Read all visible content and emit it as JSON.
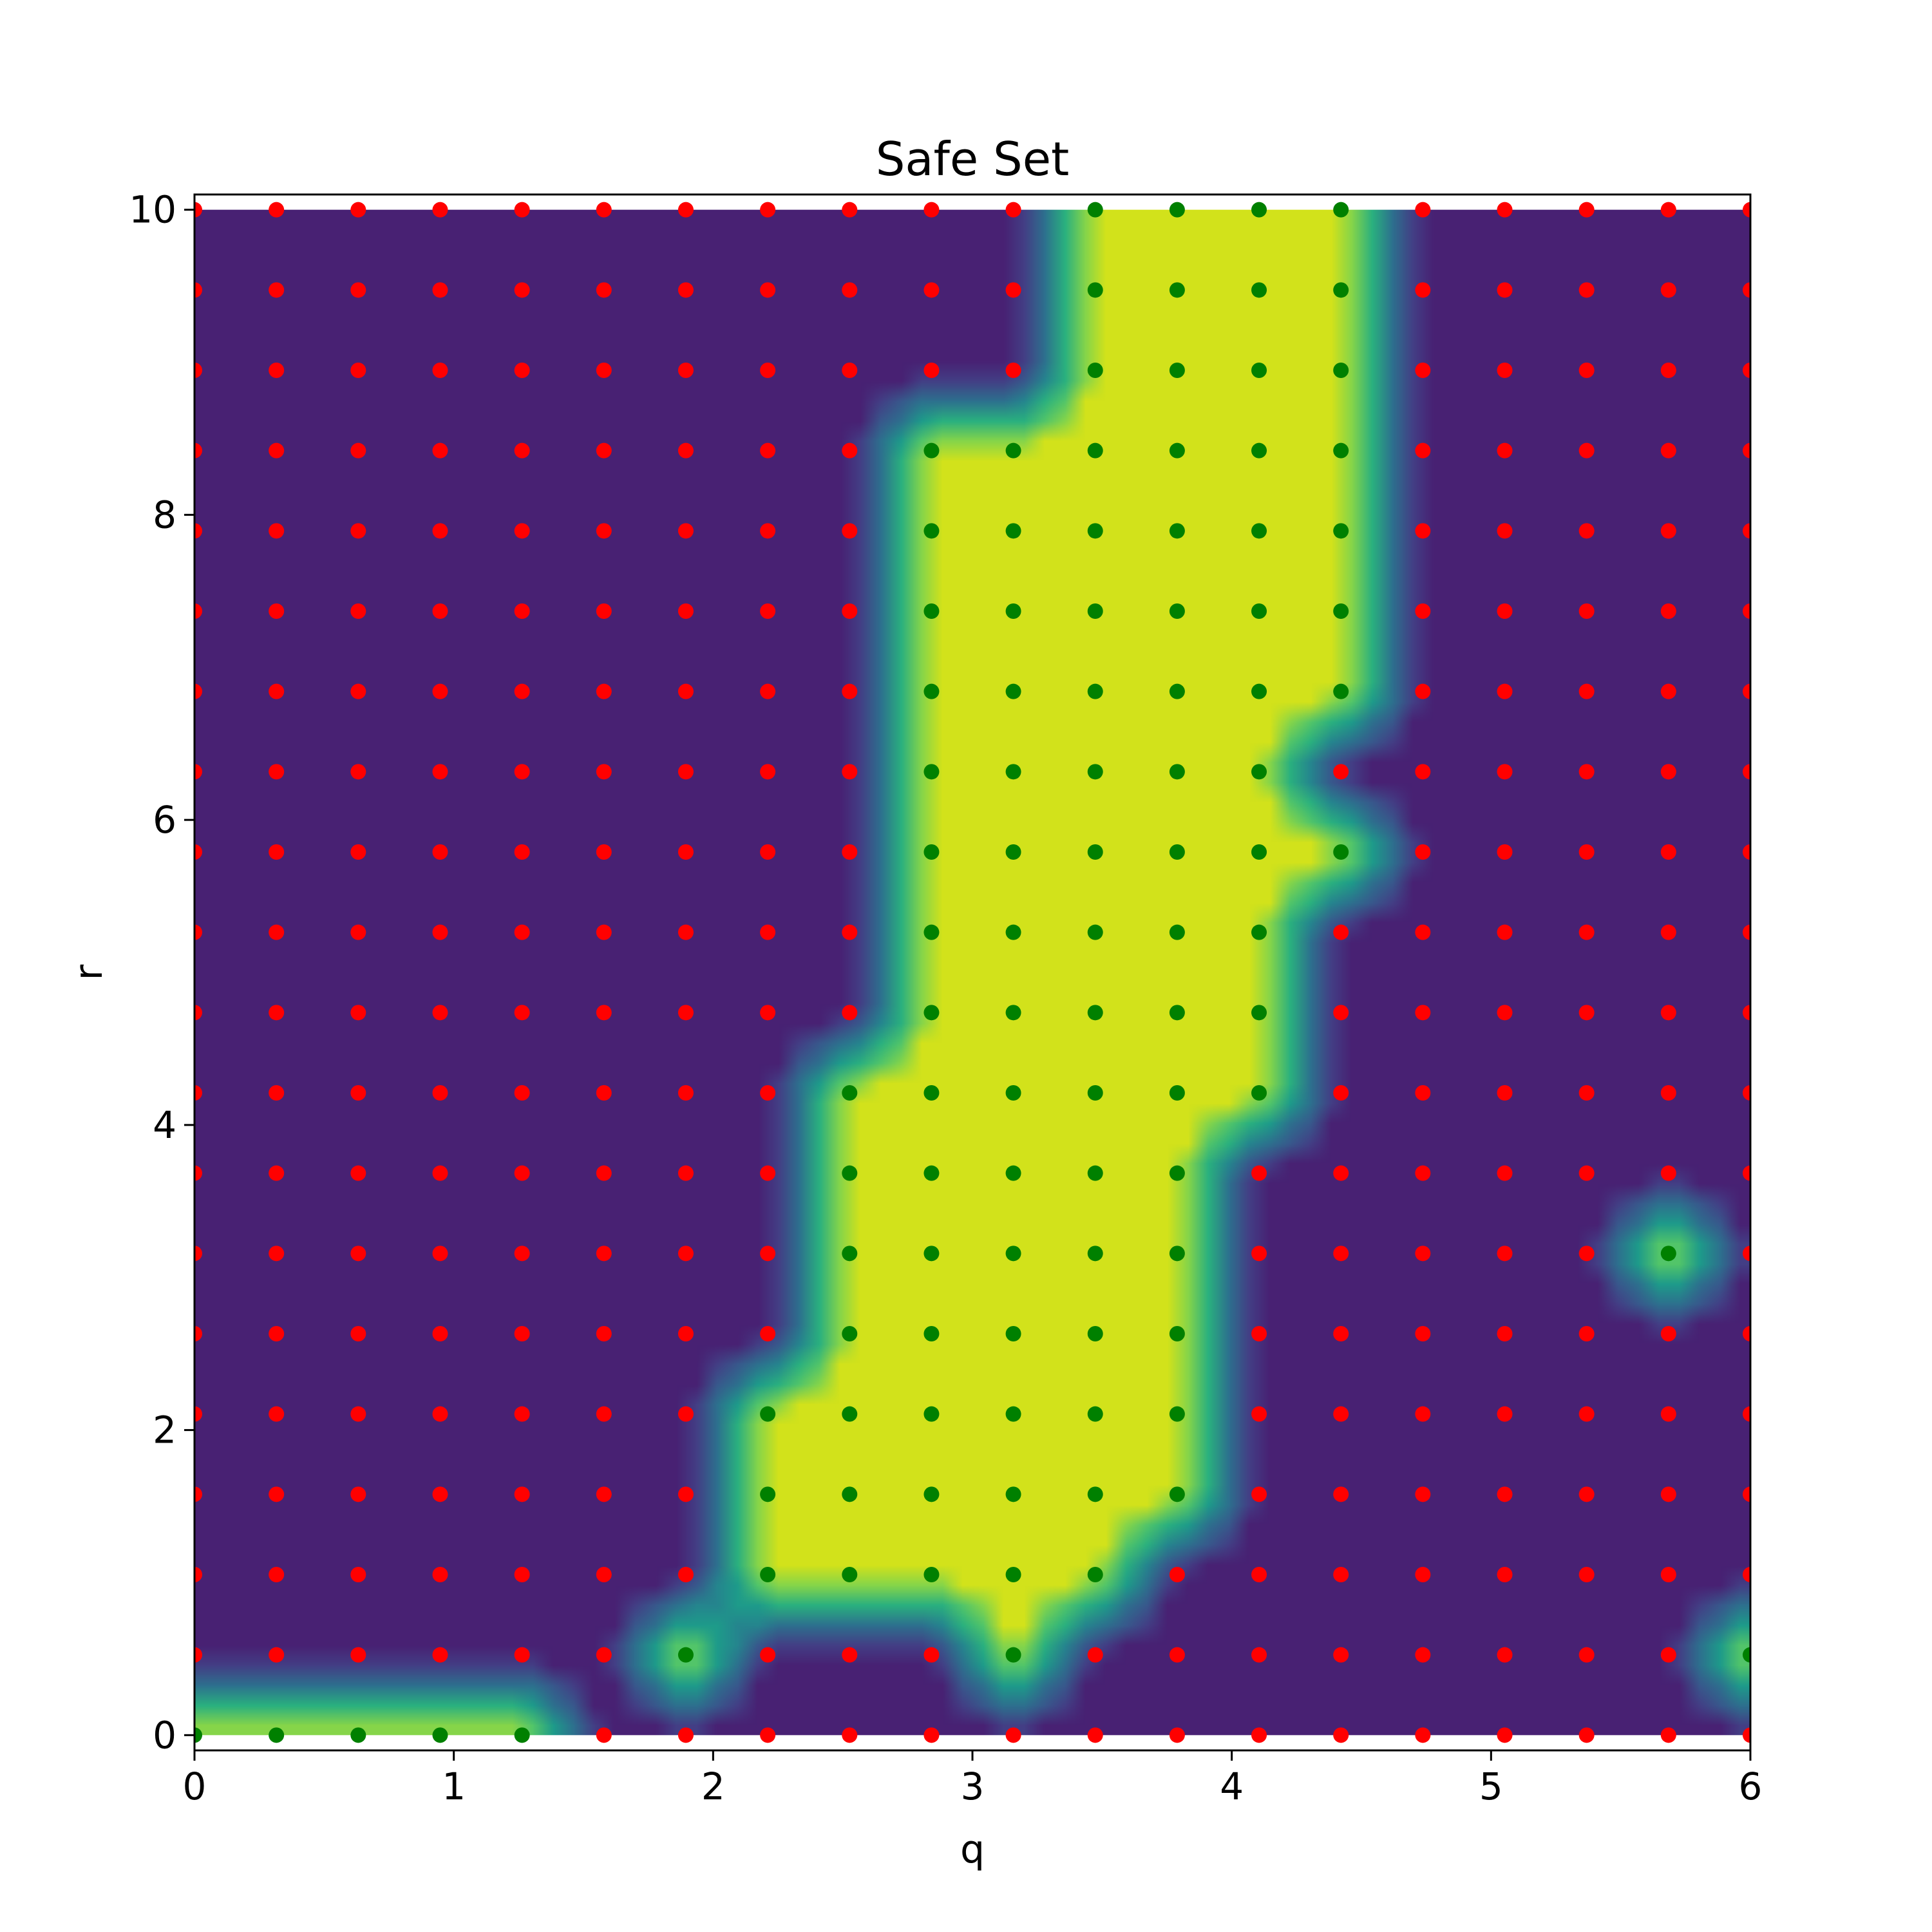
{
  "chart_data": {
    "type": "heatmap",
    "title": "Safe Set",
    "xlabel": "q",
    "ylabel": "r",
    "xlim": [
      0,
      6
    ],
    "ylim": [
      -0.1,
      10.1
    ],
    "x_ticks": [
      0,
      1,
      2,
      3,
      4,
      5,
      6
    ],
    "x_tick_labels": [
      "0",
      "1",
      "2",
      "3",
      "4",
      "5",
      "6"
    ],
    "y_ticks": [
      0,
      2,
      4,
      6,
      8,
      10
    ],
    "y_tick_labels": [
      "0",
      "2",
      "4",
      "6",
      "8",
      "10"
    ],
    "grid": {
      "x_count": 20,
      "x_min": 0,
      "x_max": 6,
      "y_count": 20,
      "y_min": 0,
      "y_max": 10
    },
    "safe_rows_bottom_to_top": [
      "11111000000000000000",
      "00000010001000000001",
      "00000001111100000000",
      "00000001111110000000",
      "00000001111110000000",
      "00000000111110000000",
      "00000000111110000010",
      "00000000111110000000",
      "00000000111111000000",
      "00000000011111000000",
      "00000000011111000000",
      "00000000011111100000",
      "00000000011111000000",
      "00000000011111100000",
      "00000000011111100000",
      "00000000011111100000",
      "00000000011111100000",
      "00000000000111100000",
      "00000000000111100000",
      "00000000000111100000"
    ],
    "colors": {
      "unsafe_fill": "#482173",
      "safe_fill": "#d2e21b",
      "contour_levels": [
        "#482173",
        "#433e85",
        "#38588c",
        "#2d708e",
        "#25858e",
        "#1e9b8a",
        "#2ab07f",
        "#52c569",
        "#86d549",
        "#d2e21b"
      ],
      "safe_marker": "#008000",
      "unsafe_marker": "#ff0000"
    }
  }
}
